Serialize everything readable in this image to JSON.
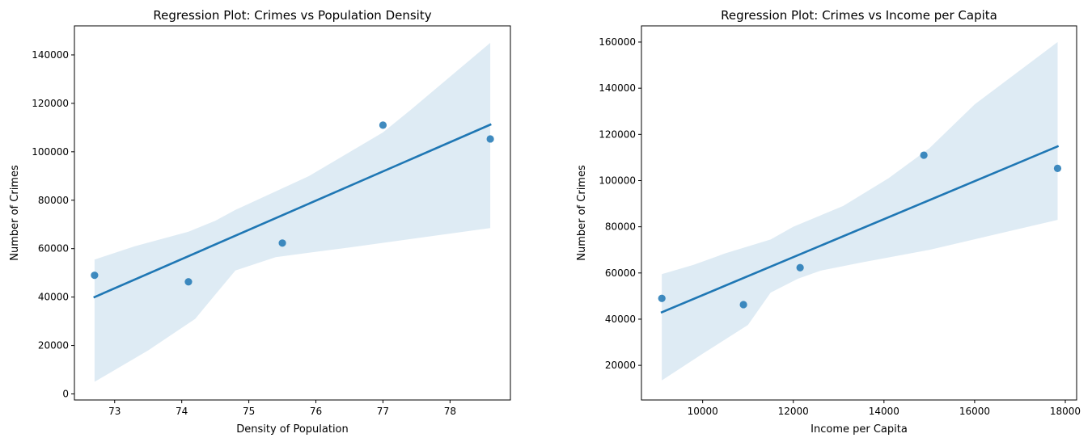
{
  "chart_data": [
    {
      "type": "scatter",
      "title": "Regression Plot: Crimes vs Population Density",
      "xlabel": "Density of Population",
      "ylabel": "Number of Crimes",
      "xlim": [
        72.4,
        78.9
      ],
      "ylim": [
        -2500,
        152000
      ],
      "xticks": [
        73,
        74,
        75,
        76,
        77,
        78
      ],
      "yticks": [
        0,
        20000,
        40000,
        60000,
        80000,
        100000,
        120000,
        140000
      ],
      "grid": false,
      "points": [
        {
          "x": 72.7,
          "y": 49000
        },
        {
          "x": 74.1,
          "y": 46300
        },
        {
          "x": 75.5,
          "y": 62300
        },
        {
          "x": 77.0,
          "y": 111000
        },
        {
          "x": 78.6,
          "y": 105300
        }
      ],
      "regression_line": [
        {
          "x": 72.7,
          "y": 40000
        },
        {
          "x": 78.6,
          "y": 111200
        }
      ],
      "confidence_band": {
        "upper": [
          [
            72.7,
            55500
          ],
          [
            73.3,
            61000
          ],
          [
            74.1,
            67000
          ],
          [
            74.5,
            71500
          ],
          [
            74.8,
            76000
          ],
          [
            75.9,
            90000
          ],
          [
            77.0,
            108000
          ],
          [
            77.4,
            117000
          ],
          [
            78.6,
            145000
          ]
        ],
        "lower": [
          [
            72.7,
            5000
          ],
          [
            73.5,
            18000
          ],
          [
            74.2,
            31000
          ],
          [
            74.5,
            41000
          ],
          [
            74.8,
            51000
          ],
          [
            75.4,
            56500
          ],
          [
            76.5,
            60500
          ],
          [
            78.6,
            68500
          ]
        ]
      }
    },
    {
      "type": "scatter",
      "title": "Regression Plot: Crimes vs Income per Capita",
      "xlabel": "Income per Capita",
      "ylabel": "Number of Crimes",
      "xlim": [
        8650,
        18250
      ],
      "ylim": [
        5000,
        167000
      ],
      "xticks": [
        10000,
        12000,
        14000,
        16000,
        18000
      ],
      "yticks": [
        20000,
        40000,
        60000,
        80000,
        100000,
        120000,
        140000,
        160000
      ],
      "grid": false,
      "points": [
        {
          "x": 9100,
          "y": 49000
        },
        {
          "x": 10900,
          "y": 46300
        },
        {
          "x": 12150,
          "y": 62300
        },
        {
          "x": 14880,
          "y": 111000
        },
        {
          "x": 17830,
          "y": 105300
        }
      ],
      "regression_line": [
        {
          "x": 9100,
          "y": 43000
        },
        {
          "x": 17830,
          "y": 114800
        }
      ],
      "confidence_band": {
        "upper": [
          [
            9100,
            59500
          ],
          [
            9800,
            63500
          ],
          [
            10500,
            68500
          ],
          [
            11500,
            74500
          ],
          [
            12000,
            80000
          ],
          [
            13100,
            89000
          ],
          [
            14100,
            101000
          ],
          [
            15000,
            114000
          ],
          [
            16000,
            133000
          ],
          [
            17830,
            160000
          ]
        ],
        "lower": [
          [
            9100,
            13500
          ],
          [
            10000,
            25000
          ],
          [
            11000,
            37500
          ],
          [
            11500,
            51500
          ],
          [
            12100,
            57500
          ],
          [
            12600,
            61000
          ],
          [
            13500,
            64500
          ],
          [
            15000,
            70000
          ],
          [
            17830,
            83000
          ]
        ]
      }
    }
  ]
}
